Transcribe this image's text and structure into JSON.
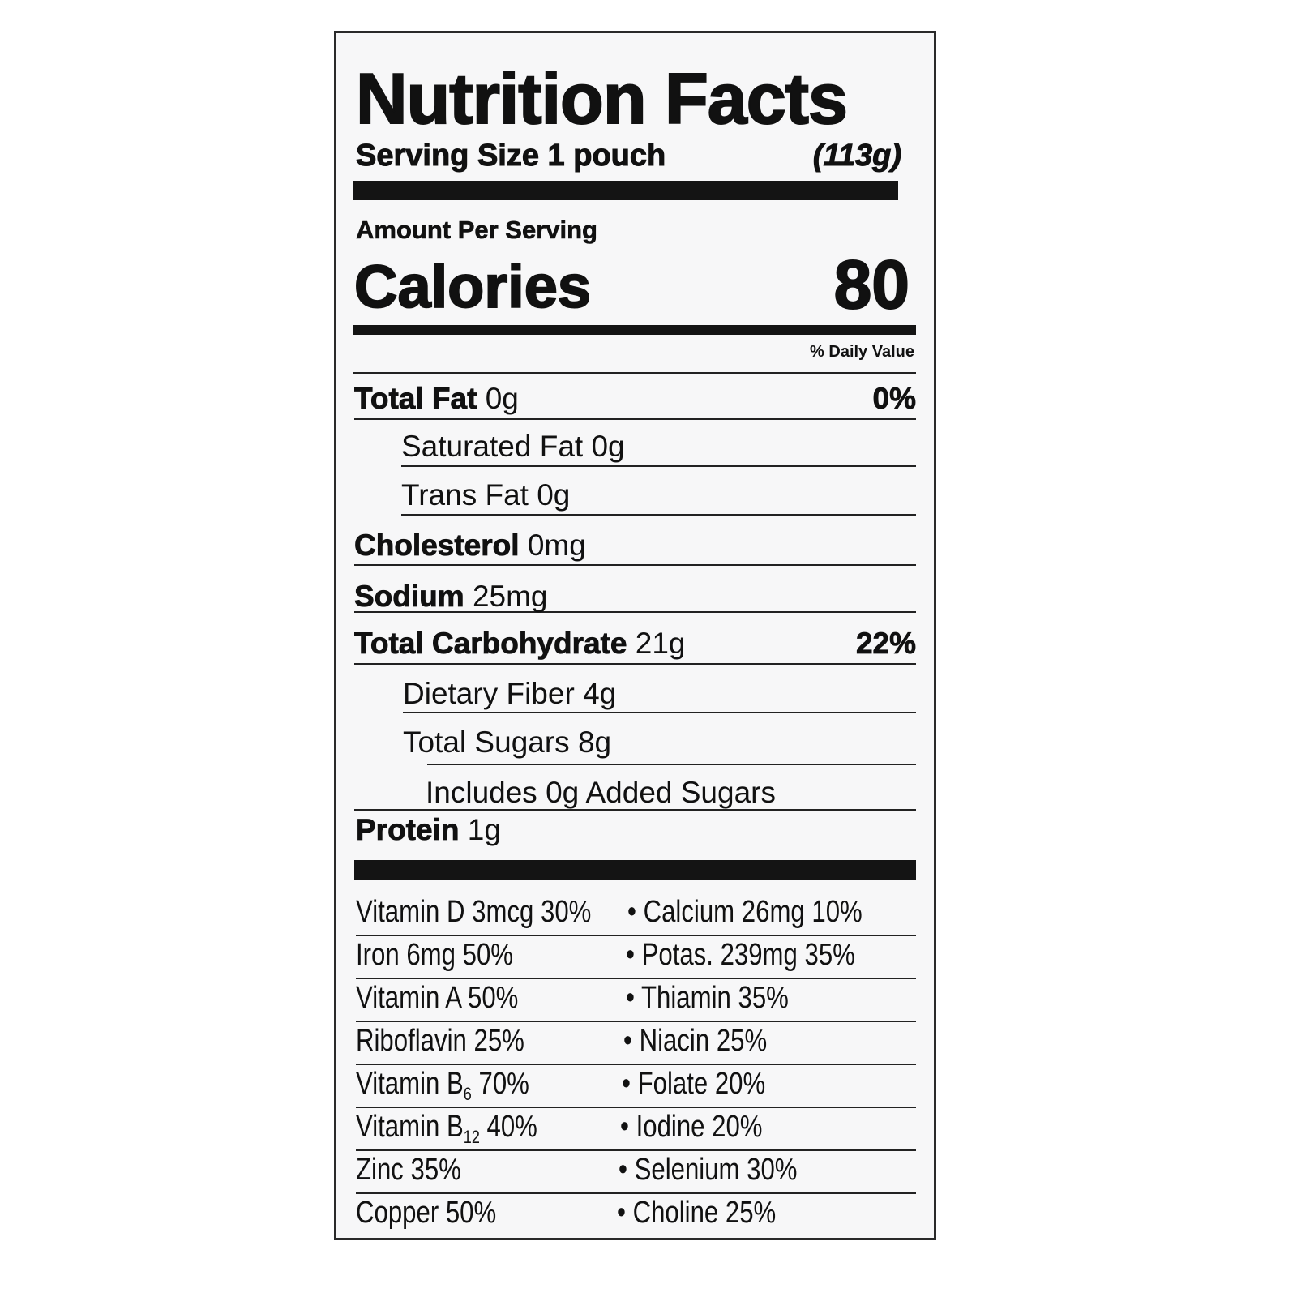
{
  "title": "Nutrition Facts",
  "serving": {
    "label": "Serving Size 1 pouch",
    "grams": "(113g)"
  },
  "amount_per_serving": "Amount Per Serving",
  "calories": {
    "label": "Calories",
    "value": "80"
  },
  "daily_value_header": "% Daily Value",
  "nutrients": [
    {
      "name": "Total Fat",
      "amount": "0g",
      "dv": "0%"
    },
    {
      "name": "Saturated Fat",
      "amount": "0g"
    },
    {
      "name": "Trans Fat",
      "amount": "0g"
    },
    {
      "name": "Cholesterol",
      "amount": "0mg"
    },
    {
      "name": "Sodium",
      "amount": "25mg"
    },
    {
      "name": "Total Carbohydrate",
      "amount": "21g",
      "dv": "22%"
    },
    {
      "name": "Dietary Fiber",
      "amount": "4g"
    },
    {
      "name": "Total Sugars",
      "amount": "8g"
    },
    {
      "text": "Includes 0g Added Sugars"
    },
    {
      "name": "Protein",
      "amount": "1g"
    }
  ],
  "vitamins": [
    [
      "Vitamin D 3mcg 30%",
      "Calcium 26mg 10%"
    ],
    [
      "Iron 6mg 50%",
      "Potas. 239mg 35%"
    ],
    [
      "Vitamin A 50%",
      "Thiamin 35%"
    ],
    [
      "Riboflavin 25%",
      "Niacin 25%"
    ],
    [
      "Vitamin B",
      "6",
      "70%",
      "Folate 20%"
    ],
    [
      "Vitamin B",
      "12",
      "40%",
      "Iodine 20%"
    ],
    [
      "Zinc 35%",
      "Selenium 30%"
    ],
    [
      "Copper 50%",
      "Choline 25%"
    ]
  ],
  "bullet": "•"
}
